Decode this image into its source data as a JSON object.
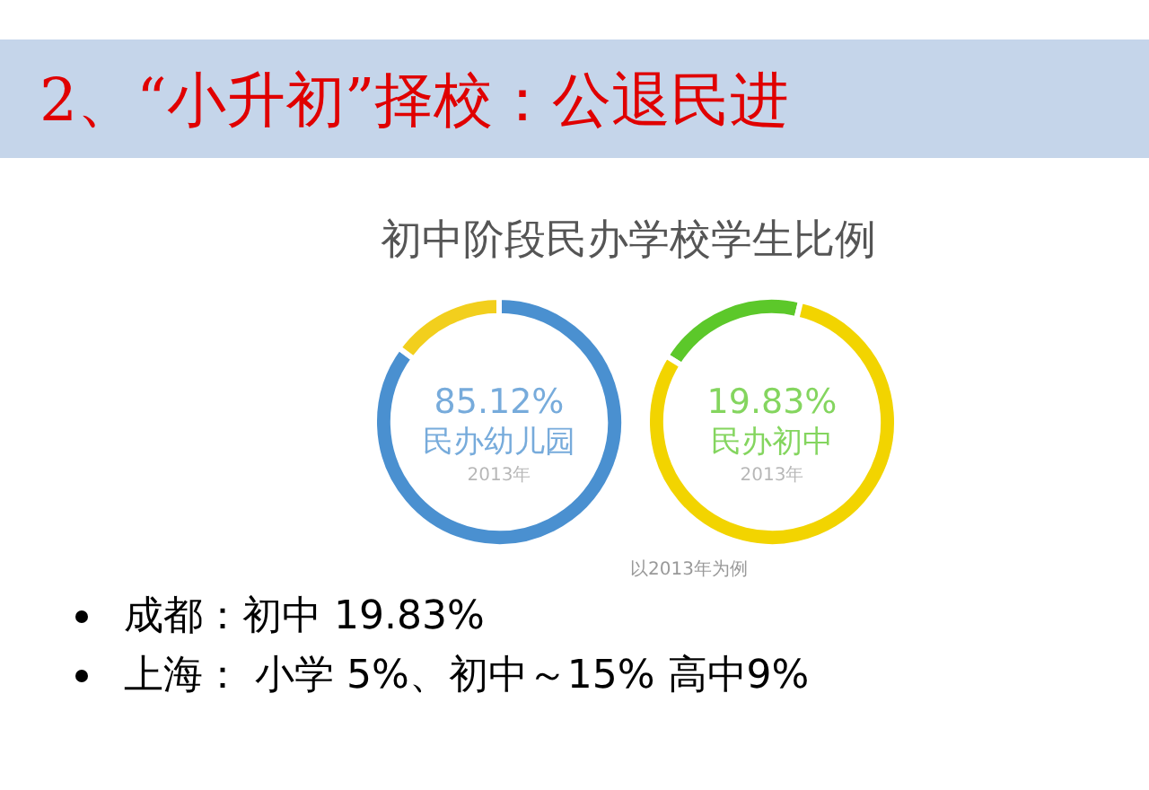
{
  "chart_data": [
    {
      "type": "donut",
      "title": "2、“小升初”择校：公退民进",
      "subtitle": "初中阶段民办学校学生比例",
      "categories": [
        "民办幼儿园",
        null
      ],
      "values": [
        85.12,
        14.88
      ],
      "colors": [
        "#4a90d0",
        "#f2cf1d"
      ],
      "value_labels": [
        "85.12%",
        null
      ],
      "annotations": [
        "2013年"
      ],
      "legend": false
    },
    {
      "type": "donut",
      "categories": [
        "民办初中",
        null
      ],
      "values": [
        19.83,
        80.17
      ],
      "colors": [
        "#5cc82a",
        "#f2d400"
      ],
      "value_labels": [
        "19.83%",
        null
      ],
      "annotations": [
        "2013年",
        "以2013年为例"
      ],
      "legend": false
    },
    {
      "type": "other",
      "annotations": [
        "成都：初中 19.83%",
        "上海： 小学 5%、初中～15%   高中9%"
      ]
    }
  ]
}
